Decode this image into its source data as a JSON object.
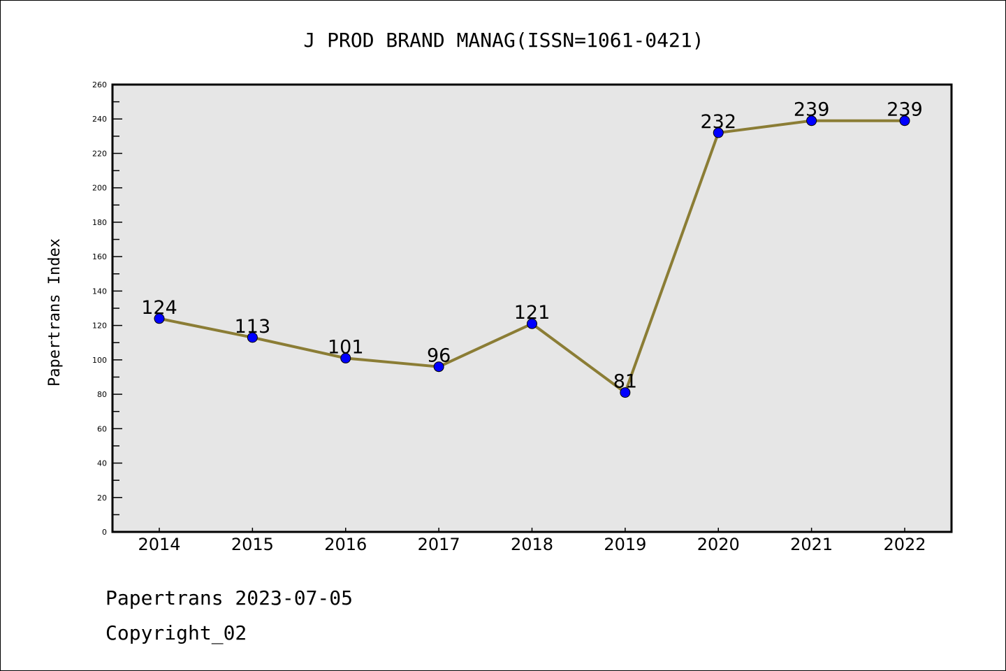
{
  "chart_data": {
    "type": "line",
    "title": "J PROD BRAND MANAG(ISSN=1061-0421)",
    "xlabel": "",
    "ylabel": "Papertrans Index",
    "categories": [
      "2014",
      "2015",
      "2016",
      "2017",
      "2018",
      "2019",
      "2020",
      "2021",
      "2022"
    ],
    "values": [
      124,
      113,
      101,
      96,
      121,
      81,
      232,
      239,
      239
    ],
    "ylim": [
      0,
      260
    ],
    "yticks": [
      0,
      20,
      40,
      60,
      80,
      100,
      120,
      140,
      160,
      180,
      200,
      220,
      240,
      260
    ],
    "grid": false,
    "line_color": "#8b7d35",
    "marker_color": "#0000ff",
    "plot_bg": "#e6e6e6"
  },
  "footer": {
    "line1": "Papertrans 2023-07-05",
    "line2": "Copyright_02"
  }
}
